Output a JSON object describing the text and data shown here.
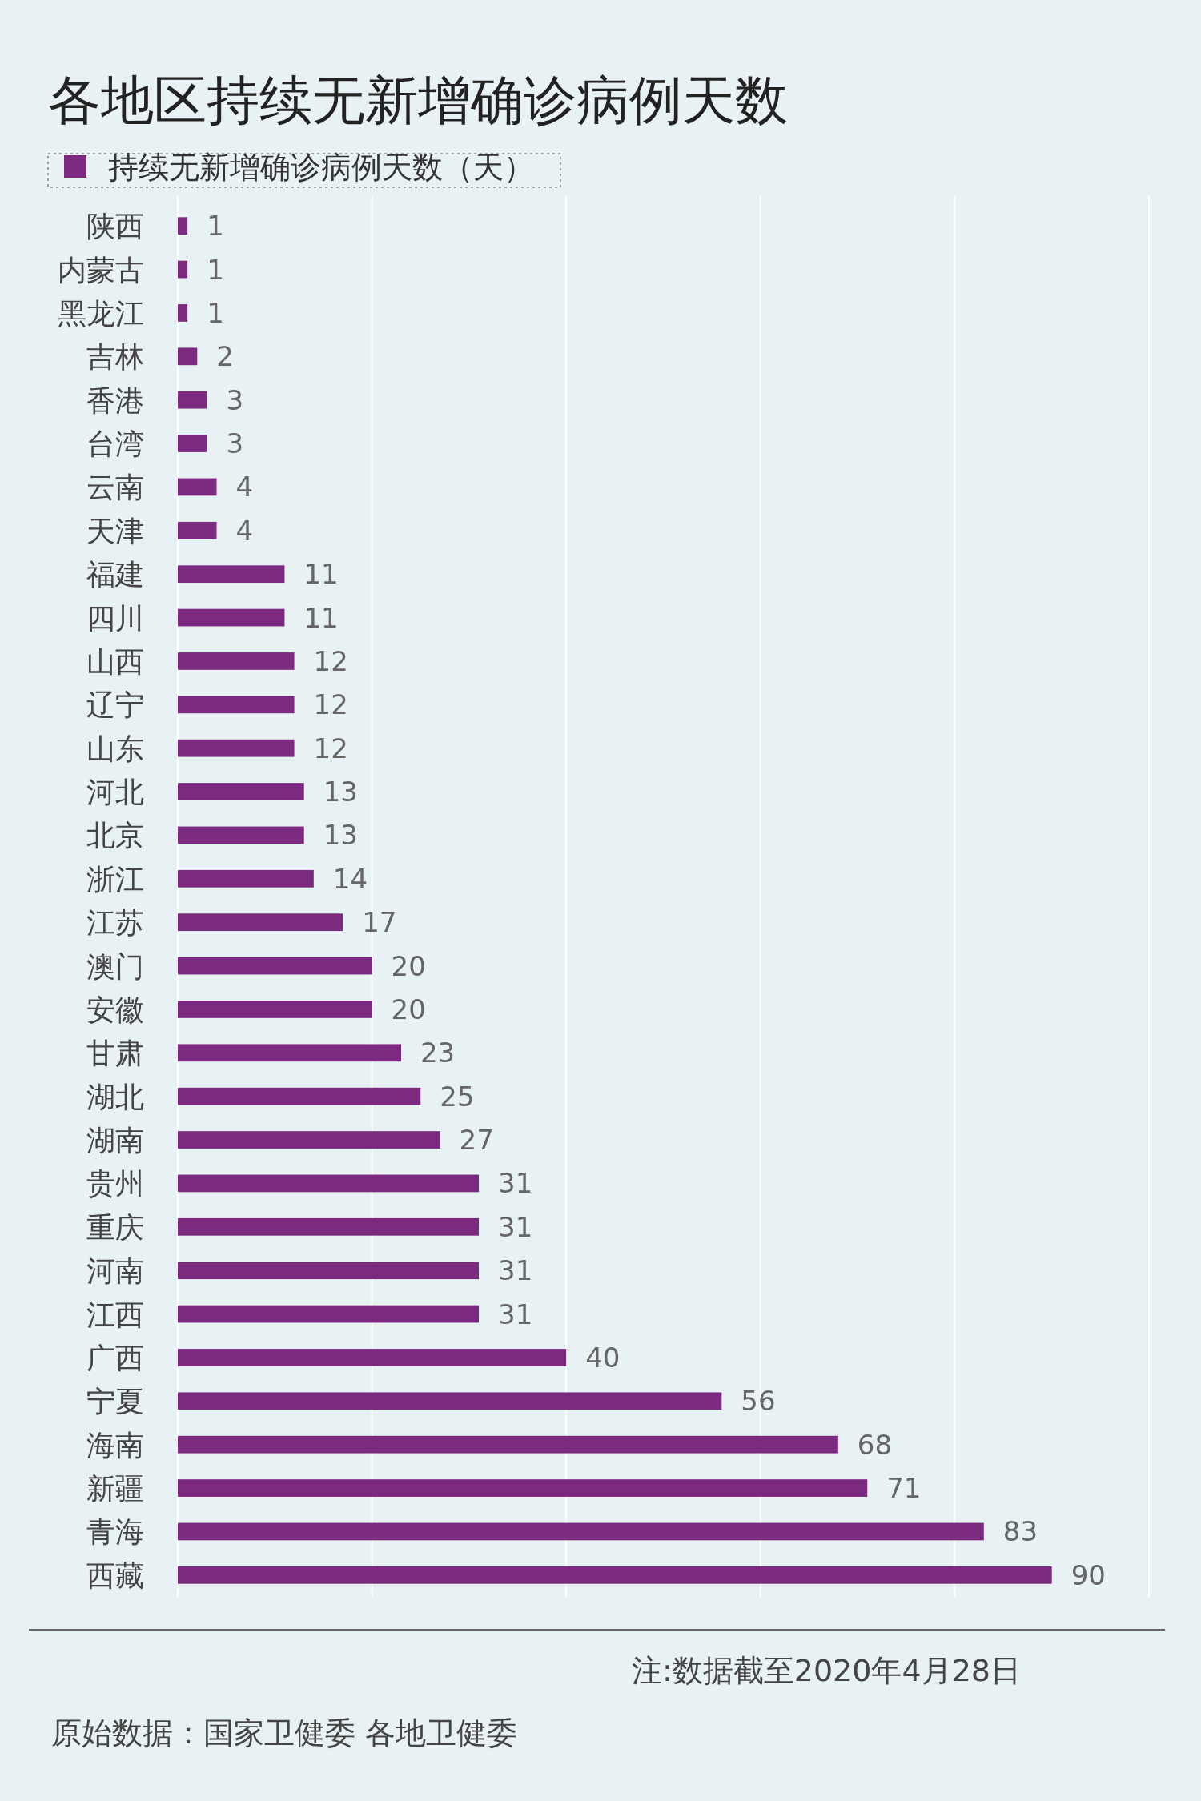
{
  "chart_data": {
    "type": "bar",
    "orientation": "horizontal",
    "title": "各地区持续无新增确诊病例天数",
    "categories": [
      "陕西",
      "内蒙古",
      "黑龙江",
      "吉林",
      "香港",
      "台湾",
      "云南",
      "天津",
      "福建",
      "四川",
      "山西",
      "辽宁",
      "山东",
      "河北",
      "北京",
      "浙江",
      "江苏",
      "澳门",
      "安徽",
      "甘肃",
      "湖北",
      "湖南",
      "贵州",
      "重庆",
      "河南",
      "江西",
      "广西",
      "宁夏",
      "海南",
      "新疆",
      "青海",
      "西藏"
    ],
    "series": [
      {
        "name": "持续无新增确诊病例天数（天）",
        "color": "#7b2a80",
        "values": [
          1,
          1,
          1,
          2,
          3,
          3,
          4,
          4,
          11,
          11,
          12,
          12,
          12,
          13,
          13,
          14,
          17,
          20,
          20,
          23,
          25,
          27,
          31,
          31,
          31,
          31,
          40,
          56,
          68,
          71,
          83,
          90
        ]
      }
    ],
    "data_labels": true,
    "xlim": [
      0,
      100
    ],
    "xticks": [
      {
        "value": 0,
        "label": null
      },
      {
        "value": 20,
        "label": null
      },
      {
        "value": 40,
        "label": null
      },
      {
        "value": 60,
        "label": null
      },
      {
        "value": 80,
        "label": null
      },
      {
        "value": 100,
        "label": null
      }
    ],
    "tick_labels": "y",
    "grid": "x",
    "legend": "top left",
    "annotations": [
      "注:数据截至2020年4月28日",
      "原始数据：国家卫健委 各地卫健委"
    ]
  }
}
